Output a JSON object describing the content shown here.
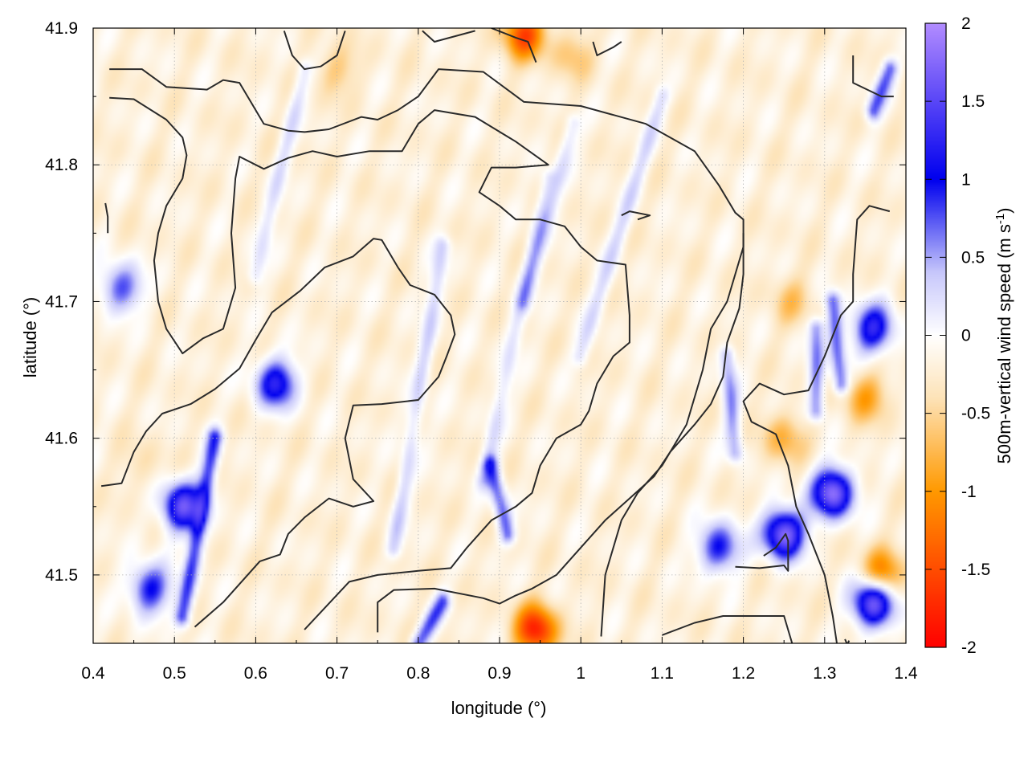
{
  "chart_data": {
    "type": "heatmap",
    "xlabel": "longitude (°)",
    "ylabel": "latitude (°)",
    "colorbar_label": "500m-vertical wind speed (m s",
    "colorbar_label_sup": "-1",
    "colorbar_label_close": ")",
    "xlim": [
      0.4,
      1.4
    ],
    "ylim": [
      41.45,
      41.9
    ],
    "xticks": [
      0.4,
      0.5,
      0.6,
      0.7,
      0.8,
      0.9,
      1.0,
      1.1,
      1.2,
      1.3,
      1.4
    ],
    "xtick_labels": [
      "0.4",
      "0.5",
      "0.6",
      "0.7",
      "0.8",
      "0.9",
      "1",
      "1.1",
      "1.2",
      "1.3",
      "1.4"
    ],
    "yticks": [
      41.5,
      41.6,
      41.7,
      41.8,
      41.9
    ],
    "ytick_labels": [
      "41.5",
      "41.6",
      "41.7",
      "41.8",
      "41.9"
    ],
    "colorbar_range": [
      -2,
      2
    ],
    "colorbar_ticks": [
      2,
      1.5,
      1,
      0.5,
      0,
      -0.5,
      -1,
      -1.5,
      -2
    ],
    "colorbar_tick_labels": [
      "2",
      "1.5",
      "1",
      "0.5",
      "0",
      "-0.5",
      "-1",
      "-1.5",
      "-2"
    ],
    "colorbar_colors": [
      {
        "value": -2,
        "color": "#ff0000"
      },
      {
        "value": -1,
        "color": "#ff9900"
      },
      {
        "value": -0.4,
        "color": "#fde3b8"
      },
      {
        "value": 0,
        "color": "#ffffff"
      },
      {
        "value": 0.4,
        "color": "#c8c8fb"
      },
      {
        "value": 1,
        "color": "#0000ee"
      },
      {
        "value": 2,
        "color": "#b28cff"
      }
    ],
    "grid": true,
    "background_value": -0.2,
    "features": [
      {
        "kind": "updraft",
        "lon": 0.435,
        "lat": 41.71,
        "value": 0.8
      },
      {
        "kind": "updraft",
        "lon": 0.625,
        "lat": 41.64,
        "value": 1.2
      },
      {
        "kind": "updraft",
        "lon": 0.51,
        "lat": 41.55,
        "value": 1.5
      },
      {
        "kind": "updraft",
        "lon": 0.47,
        "lat": 41.49,
        "value": 1.0
      },
      {
        "kind": "updraft",
        "lon": 1.25,
        "lat": 41.53,
        "value": 1.8
      },
      {
        "kind": "updraft",
        "lon": 1.31,
        "lat": 41.56,
        "value": 1.8
      },
      {
        "kind": "updraft",
        "lon": 1.36,
        "lat": 41.48,
        "value": 1.8
      },
      {
        "kind": "updraft",
        "lon": 1.17,
        "lat": 41.52,
        "value": 1.0
      },
      {
        "kind": "updraft",
        "lon": 1.36,
        "lat": 41.68,
        "value": 1.2
      },
      {
        "kind": "downdraft",
        "lon": 0.945,
        "lat": 41.46,
        "value": -1.8
      },
      {
        "kind": "downdraft",
        "lon": 0.93,
        "lat": 41.895,
        "value": -1.5
      },
      {
        "kind": "downdraft",
        "lon": 1.37,
        "lat": 41.5,
        "value": -1.3
      },
      {
        "kind": "downdraft",
        "lon": 1.25,
        "lat": 41.6,
        "value": -0.8
      },
      {
        "kind": "downdraft",
        "lon": 1.35,
        "lat": 41.63,
        "value": -0.9
      },
      {
        "kind": "downdraft",
        "lon": 1.26,
        "lat": 41.7,
        "value": -0.6
      },
      {
        "kind": "downdraft",
        "lon": 0.46,
        "lat": 41.58,
        "value": -0.4
      },
      {
        "kind": "downdraft",
        "lon": 0.99,
        "lat": 41.88,
        "value": -0.6
      },
      {
        "kind": "downdraft",
        "lon": 0.7,
        "lat": 41.87,
        "value": -0.6
      }
    ],
    "streaks": [
      {
        "from": [
          0.77,
          41.52
        ],
        "to": [
          0.83,
          41.74
        ],
        "value": 0.5
      },
      {
        "from": [
          0.88,
          41.57
        ],
        "to": [
          0.96,
          41.79
        ],
        "value": 0.4
      },
      {
        "from": [
          0.91,
          41.53
        ],
        "to": [
          0.89,
          41.58
        ],
        "value": 0.9
      },
      {
        "from": [
          1.0,
          41.66
        ],
        "to": [
          1.1,
          41.85
        ],
        "value": 0.4
      },
      {
        "from": [
          0.6,
          41.72
        ],
        "to": [
          0.66,
          41.87
        ],
        "value": 0.4
      },
      {
        "from": [
          0.93,
          41.7
        ],
        "to": [
          0.99,
          41.83
        ],
        "value": 0.4
      },
      {
        "from": [
          1.19,
          41.59
        ],
        "to": [
          1.18,
          41.66
        ],
        "value": 0.7
      },
      {
        "from": [
          1.29,
          41.62
        ],
        "to": [
          1.29,
          41.68
        ],
        "value": 0.8
      },
      {
        "from": [
          1.32,
          41.64
        ],
        "to": [
          1.31,
          41.7
        ],
        "value": 0.9
      },
      {
        "from": [
          0.51,
          41.47
        ],
        "to": [
          0.55,
          41.6
        ],
        "value": 1.0
      },
      {
        "from": [
          0.8,
          41.45
        ],
        "to": [
          0.83,
          41.48
        ],
        "value": 0.9
      },
      {
        "from": [
          1.36,
          41.84
        ],
        "to": [
          1.38,
          41.87
        ],
        "value": 0.9
      }
    ],
    "contours": [
      [
        [
          0.42,
          41.87
        ],
        [
          0.46,
          41.87
        ],
        [
          0.49,
          41.857
        ],
        [
          0.54,
          41.855
        ],
        [
          0.56,
          41.862
        ],
        [
          0.58,
          41.86
        ],
        [
          0.61,
          41.83
        ],
        [
          0.64,
          41.825
        ],
        [
          0.66,
          41.824
        ],
        [
          0.69,
          41.826
        ],
        [
          0.73,
          41.835
        ],
        [
          0.75,
          41.833
        ],
        [
          0.775,
          41.84
        ],
        [
          0.8,
          41.85
        ],
        [
          0.825,
          41.87
        ],
        [
          0.88,
          41.868
        ],
        [
          0.93,
          41.846
        ],
        [
          1.0,
          41.843
        ],
        [
          1.08,
          41.83
        ],
        [
          1.14,
          41.81
        ],
        [
          1.17,
          41.785
        ],
        [
          1.19,
          41.765
        ],
        [
          1.2,
          41.76
        ],
        [
          1.2,
          41.74
        ],
        [
          1.19,
          41.72
        ],
        [
          1.18,
          41.7
        ],
        [
          1.16,
          41.68
        ],
        [
          1.15,
          41.65
        ],
        [
          1.13,
          41.61
        ],
        [
          1.1,
          41.58
        ],
        [
          1.07,
          41.56
        ],
        [
          1.05,
          41.54
        ],
        [
          1.04,
          41.52
        ],
        [
          1.03,
          41.5
        ],
        [
          1.025,
          41.455
        ]
      ],
      [
        [
          0.42,
          41.849
        ],
        [
          0.45,
          41.848
        ],
        [
          0.49,
          41.833
        ],
        [
          0.51,
          41.82
        ],
        [
          0.515,
          41.807
        ],
        [
          0.51,
          41.79
        ],
        [
          0.49,
          41.77
        ],
        [
          0.48,
          41.75
        ],
        [
          0.475,
          41.73
        ],
        [
          0.48,
          41.7
        ],
        [
          0.49,
          41.68
        ],
        [
          0.51,
          41.662
        ],
        [
          0.535,
          41.673
        ],
        [
          0.56,
          41.68
        ],
        [
          0.575,
          41.71
        ],
        [
          0.57,
          41.75
        ],
        [
          0.575,
          41.79
        ],
        [
          0.58,
          41.806
        ],
        [
          0.61,
          41.797
        ],
        [
          0.64,
          41.805
        ],
        [
          0.67,
          41.81
        ],
        [
          0.7,
          41.806
        ],
        [
          0.74,
          41.81
        ],
        [
          0.78,
          41.81
        ],
        [
          0.8,
          41.83
        ],
        [
          0.82,
          41.84
        ],
        [
          0.87,
          41.835
        ],
        [
          0.92,
          41.817
        ],
        [
          0.96,
          41.8
        ],
        [
          0.92,
          41.798
        ],
        [
          0.89,
          41.798
        ],
        [
          0.875,
          41.78
        ],
        [
          0.9,
          41.77
        ],
        [
          0.92,
          41.76
        ],
        [
          0.95,
          41.76
        ],
        [
          0.98,
          41.755
        ],
        [
          1.0,
          41.74
        ],
        [
          1.02,
          41.73
        ],
        [
          1.055,
          41.727
        ],
        [
          1.06,
          41.69
        ],
        [
          1.06,
          41.67
        ],
        [
          1.04,
          41.66
        ],
        [
          1.02,
          41.64
        ],
        [
          1.01,
          41.62
        ],
        [
          1.0,
          41.61
        ],
        [
          0.97,
          41.6
        ],
        [
          0.95,
          41.58
        ],
        [
          0.94,
          41.56
        ],
        [
          0.92,
          41.55
        ],
        [
          0.89,
          41.54
        ],
        [
          0.86,
          41.52
        ],
        [
          0.84,
          41.505
        ],
        [
          0.8,
          41.503
        ],
        [
          0.75,
          41.5
        ],
        [
          0.715,
          41.495
        ],
        [
          0.66,
          41.46
        ]
      ],
      [
        [
          0.41,
          41.565
        ],
        [
          0.435,
          41.567
        ],
        [
          0.45,
          41.59
        ],
        [
          0.465,
          41.605
        ],
        [
          0.485,
          41.618
        ],
        [
          0.52,
          41.625
        ],
        [
          0.55,
          41.636
        ],
        [
          0.58,
          41.651
        ],
        [
          0.6,
          41.672
        ],
        [
          0.62,
          41.692
        ],
        [
          0.655,
          41.708
        ],
        [
          0.685,
          41.725
        ],
        [
          0.72,
          41.733
        ],
        [
          0.745,
          41.746
        ],
        [
          0.755,
          41.745
        ],
        [
          0.775,
          41.725
        ],
        [
          0.79,
          41.712
        ],
        [
          0.82,
          41.705
        ],
        [
          0.84,
          41.69
        ],
        [
          0.845,
          41.676
        ],
        [
          0.835,
          41.66
        ],
        [
          0.825,
          41.645
        ],
        [
          0.8,
          41.628
        ],
        [
          0.755,
          41.625
        ],
        [
          0.72,
          41.624
        ],
        [
          0.71,
          41.6
        ],
        [
          0.715,
          41.585
        ],
        [
          0.72,
          41.57
        ],
        [
          0.745,
          41.554
        ],
        [
          0.72,
          41.55
        ],
        [
          0.69,
          41.556
        ],
        [
          0.66,
          41.542
        ],
        [
          0.64,
          41.53
        ],
        [
          0.63,
          41.515
        ],
        [
          0.605,
          41.51
        ],
        [
          0.575,
          41.49
        ],
        [
          0.56,
          41.48
        ],
        [
          0.525,
          41.462
        ]
      ],
      [
        [
          0.75,
          41.458
        ],
        [
          0.75,
          41.48
        ],
        [
          0.77,
          41.489
        ],
        [
          0.82,
          41.49
        ],
        [
          0.88,
          41.483
        ],
        [
          0.9,
          41.479
        ],
        [
          0.92,
          41.485
        ],
        [
          0.94,
          41.49
        ],
        [
          0.97,
          41.5
        ],
        [
          1.0,
          41.52
        ],
        [
          1.03,
          41.54
        ],
        [
          1.06,
          41.556
        ],
        [
          1.09,
          41.572
        ],
        [
          1.11,
          41.59
        ],
        [
          1.14,
          41.61
        ],
        [
          1.16,
          41.625
        ],
        [
          1.175,
          41.645
        ],
        [
          1.18,
          41.67
        ],
        [
          1.195,
          41.695
        ],
        [
          1.2,
          41.72
        ],
        [
          1.2,
          41.75
        ]
      ],
      [
        [
          1.1,
          41.456
        ],
        [
          1.14,
          41.465
        ],
        [
          1.175,
          41.47
        ],
        [
          1.2,
          41.47
        ],
        [
          1.25,
          41.47
        ],
        [
          1.26,
          41.45
        ]
      ],
      [
        [
          1.19,
          41.506
        ],
        [
          1.22,
          41.505
        ],
        [
          1.25,
          41.507
        ],
        [
          1.255,
          41.503
        ],
        [
          1.255,
          41.525
        ],
        [
          1.252,
          41.53
        ],
        [
          1.24,
          41.52
        ],
        [
          1.225,
          41.514
        ]
      ],
      [
        [
          1.315,
          41.45
        ],
        [
          1.31,
          41.47
        ],
        [
          1.3,
          41.5
        ],
        [
          1.28,
          41.53
        ],
        [
          1.265,
          41.55
        ],
        [
          1.255,
          41.58
        ],
        [
          1.24,
          41.603
        ],
        [
          1.21,
          41.612
        ],
        [
          1.2,
          41.627
        ],
        [
          1.22,
          41.64
        ],
        [
          1.25,
          41.632
        ],
        [
          1.28,
          41.635
        ],
        [
          1.3,
          41.66
        ],
        [
          1.31,
          41.675
        ],
        [
          1.32,
          41.69
        ],
        [
          1.335,
          41.7
        ],
        [
          1.335,
          41.72
        ],
        [
          1.34,
          41.76
        ],
        [
          1.355,
          41.77
        ],
        [
          1.38,
          41.766
        ]
      ],
      [
        [
          1.335,
          41.88
        ],
        [
          1.335,
          41.86
        ],
        [
          1.37,
          41.85
        ],
        [
          1.385,
          41.85
        ]
      ],
      [
        [
          0.635,
          41.898
        ],
        [
          0.645,
          41.88
        ],
        [
          0.66,
          41.87
        ],
        [
          0.68,
          41.872
        ],
        [
          0.7,
          41.88
        ],
        [
          0.71,
          41.898
        ]
      ],
      [
        [
          0.805,
          41.898
        ],
        [
          0.82,
          41.89
        ],
        [
          0.87,
          41.898
        ]
      ],
      [
        [
          0.89,
          41.9
        ],
        [
          0.92,
          41.893
        ],
        [
          0.935,
          41.89
        ],
        [
          0.945,
          41.875
        ]
      ],
      [
        [
          1.015,
          41.89
        ],
        [
          1.02,
          41.88
        ],
        [
          1.04,
          41.886
        ],
        [
          1.05,
          41.89
        ]
      ],
      [
        [
          0.415,
          41.772
        ],
        [
          0.418,
          41.762
        ],
        [
          0.418,
          41.75
        ]
      ],
      [
        [
          1.05,
          41.763
        ],
        [
          1.06,
          41.766
        ],
        [
          1.085,
          41.763
        ],
        [
          1.07,
          41.76
        ]
      ],
      [
        [
          1.325,
          41.453
        ],
        [
          1.328,
          41.449
        ],
        [
          1.33,
          41.452
        ]
      ]
    ]
  }
}
